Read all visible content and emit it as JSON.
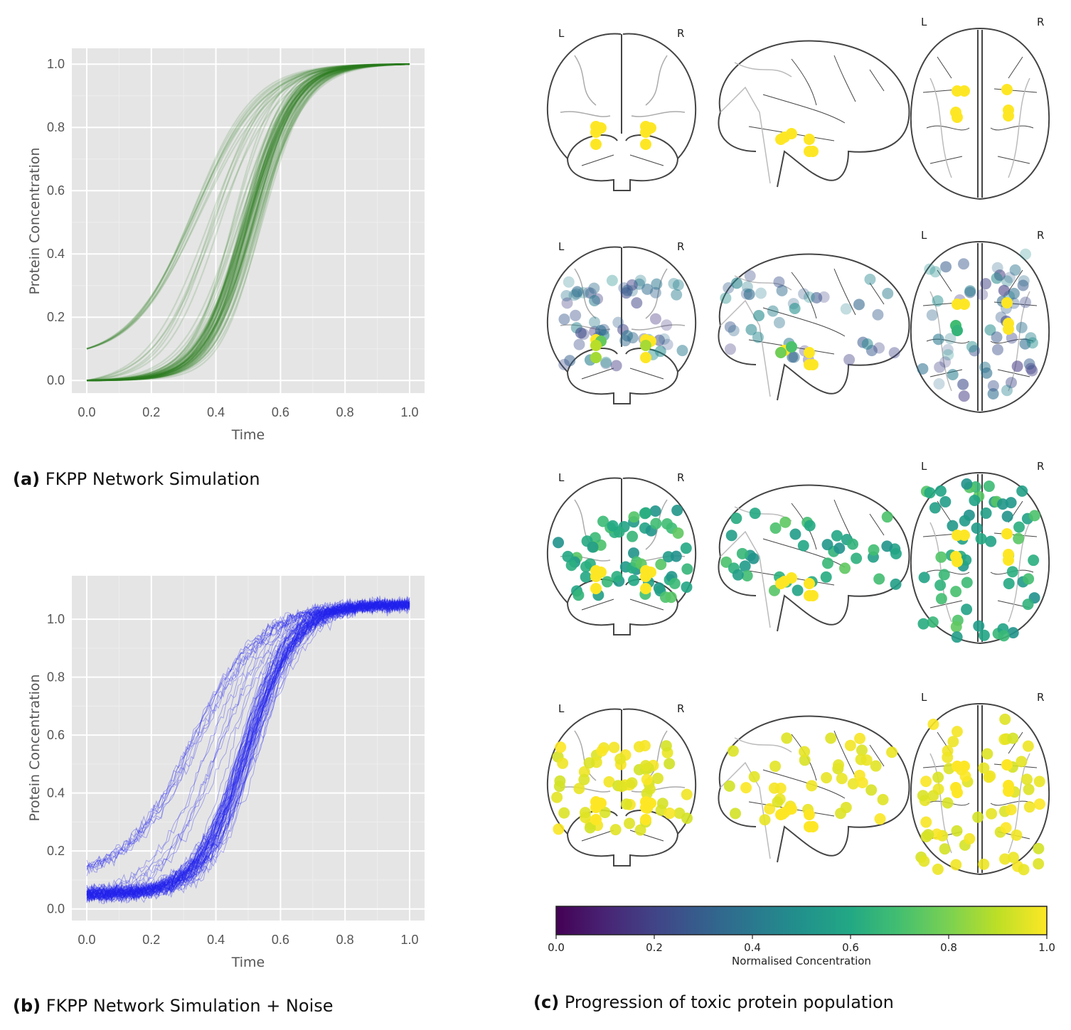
{
  "captions": {
    "a_tag": "(a)",
    "a_text": "FKPP Network Simulation",
    "b_tag": "(b)",
    "b_text": "FKPP Network Simulation + Noise",
    "c_tag": "(c)",
    "c_text": "Progression of toxic protein population"
  },
  "brain_labels": {
    "left": "L",
    "right": "R"
  },
  "colorbar": {
    "label": "Normalised Concentration",
    "ticks": [
      "0.0",
      "0.2",
      "0.4",
      "0.6",
      "0.8",
      "1.0"
    ],
    "colormap": "viridis"
  },
  "chart_data": [
    {
      "type": "line",
      "panel": "a",
      "xlabel": "Time",
      "ylabel": "Protein Concentration",
      "xlim": [
        0,
        1
      ],
      "ylim": [
        -0.04,
        1.05
      ],
      "xticks": [
        "0.0",
        "0.2",
        "0.4",
        "0.6",
        "0.8",
        "1.0"
      ],
      "yticks": [
        "0.0",
        "0.2",
        "0.4",
        "0.6",
        "0.8",
        "1.0"
      ],
      "grid": true,
      "line_color": "#2e7d1f",
      "series_description": "~80 sigmoid curves from 0 to 1; most start at 0.0, one group starts at 0.1",
      "series": [
        {
          "x": [
            0.0,
            0.2,
            0.3,
            0.4,
            0.5,
            0.6,
            0.7,
            0.8,
            0.9,
            1.0
          ],
          "values": [
            0.1,
            0.25,
            0.38,
            0.55,
            0.71,
            0.84,
            0.92,
            0.97,
            0.99,
            1.0
          ]
        },
        {
          "x": [
            0.0,
            0.2,
            0.3,
            0.4,
            0.5,
            0.6,
            0.7,
            0.8,
            0.9,
            1.0
          ],
          "values": [
            0.0,
            0.06,
            0.17,
            0.36,
            0.58,
            0.78,
            0.9,
            0.96,
            0.99,
            1.0
          ]
        },
        {
          "x": [
            0.0,
            0.2,
            0.3,
            0.4,
            0.5,
            0.6,
            0.7,
            0.8,
            0.9,
            1.0
          ],
          "values": [
            0.0,
            0.02,
            0.06,
            0.17,
            0.42,
            0.71,
            0.89,
            0.96,
            0.99,
            1.0
          ]
        },
        {
          "x": [
            0.0,
            0.2,
            0.3,
            0.4,
            0.5,
            0.6,
            0.7,
            0.8,
            0.9,
            1.0
          ],
          "values": [
            0.0,
            0.01,
            0.03,
            0.09,
            0.28,
            0.58,
            0.83,
            0.94,
            0.98,
            1.0
          ]
        }
      ]
    },
    {
      "type": "line",
      "panel": "b",
      "xlabel": "Time",
      "ylabel": "Protein Concentration",
      "xlim": [
        0,
        1
      ],
      "ylim": [
        -0.04,
        1.15
      ],
      "xticks": [
        "0.0",
        "0.2",
        "0.4",
        "0.6",
        "0.8",
        "1.0"
      ],
      "yticks": [
        "0.0",
        "0.2",
        "0.4",
        "0.6",
        "0.8",
        "1.0"
      ],
      "grid": true,
      "line_color": "#2222ee",
      "series_description": "~80 noisy sigmoid curves; most start near 0.05, one group near 0.15; all plateau near 1.05",
      "series": [
        {
          "x": [
            0.0,
            0.2,
            0.3,
            0.4,
            0.5,
            0.6,
            0.7,
            0.8,
            0.9,
            1.0
          ],
          "values": [
            0.15,
            0.28,
            0.4,
            0.56,
            0.72,
            0.86,
            0.97,
            1.02,
            1.04,
            1.05
          ]
        },
        {
          "x": [
            0.0,
            0.2,
            0.3,
            0.4,
            0.5,
            0.6,
            0.7,
            0.8,
            0.9,
            1.0
          ],
          "values": [
            0.05,
            0.1,
            0.17,
            0.32,
            0.56,
            0.8,
            0.96,
            1.02,
            1.04,
            1.05
          ]
        },
        {
          "x": [
            0.0,
            0.2,
            0.3,
            0.4,
            0.5,
            0.6,
            0.7,
            0.8,
            0.9,
            1.0
          ],
          "values": [
            0.05,
            0.07,
            0.11,
            0.22,
            0.46,
            0.75,
            0.94,
            1.01,
            1.04,
            1.05
          ]
        }
      ]
    }
  ],
  "brain_rows": [
    {
      "nodes": 9
    },
    {
      "nodes": 90
    },
    {
      "nodes": 90
    },
    {
      "nodes": 90
    }
  ]
}
